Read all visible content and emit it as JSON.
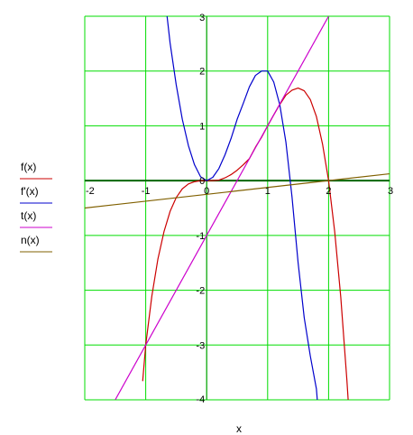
{
  "chart_data": {
    "type": "line",
    "xlabel": "x",
    "xlim": [
      -2,
      3
    ],
    "ylim": [
      -4,
      3
    ],
    "x_ticks": [
      "-2",
      "-1",
      "0",
      "1",
      "2",
      "3"
    ],
    "y_ticks": [
      "3",
      "2",
      "1",
      "0",
      "-1",
      "-2",
      "-3",
      "-4"
    ],
    "grid": true,
    "legend_position": "left",
    "series": [
      {
        "name": "f(x)",
        "color": "#cc0000",
        "x": [
          -1.05,
          -1,
          -0.9,
          -0.8,
          -0.7,
          -0.6,
          -0.5,
          -0.4,
          -0.3,
          -0.2,
          -0.1,
          0,
          0.1,
          0.2,
          0.3,
          0.4,
          0.5,
          0.6,
          0.7,
          0.8,
          0.9,
          1,
          1.1,
          1.2,
          1.3,
          1.4,
          1.5,
          1.6,
          1.7,
          1.8,
          1.9,
          2,
          2.1,
          2.2,
          2.3,
          2.35
        ],
        "y": [
          -3.66,
          -3,
          -2.11,
          -1.43,
          -0.93,
          -0.56,
          -0.31,
          -0.15,
          -0.06,
          -0.02,
          0,
          0,
          0,
          0.01,
          0.05,
          0.11,
          0.19,
          0.29,
          0.4,
          0.61,
          0.79,
          1,
          1.2,
          1.39,
          1.56,
          1.65,
          1.69,
          1.64,
          1.48,
          1.17,
          0.67,
          0,
          -0.93,
          -2.13,
          -3.64,
          -4.5
        ]
      },
      {
        "name": "f'(x)",
        "color": "#0000cc",
        "x": [
          -0.66,
          -0.6,
          -0.5,
          -0.4,
          -0.3,
          -0.2,
          -0.1,
          0,
          0.1,
          0.2,
          0.3,
          0.4,
          0.5,
          0.6,
          0.7,
          0.8,
          0.9,
          1,
          1.1,
          1.2,
          1.3,
          1.4,
          1.5,
          1.6,
          1.7,
          1.8,
          1.85
        ],
        "y": [
          3.1,
          2.51,
          1.75,
          1.12,
          0.64,
          0.29,
          0.07,
          0,
          0.06,
          0.22,
          0.47,
          0.77,
          1.12,
          1.41,
          1.71,
          1.92,
          2,
          2,
          1.8,
          1.38,
          0.7,
          -0.3,
          -1.5,
          -2.5,
          -3.2,
          -3.8,
          -4.5
        ]
      },
      {
        "name": "t(x)",
        "color": "#cc00cc",
        "x": [
          -1.5,
          2
        ],
        "y": [
          -4,
          3
        ]
      },
      {
        "name": "n(x)",
        "color": "#806000",
        "x": [
          -2,
          3
        ],
        "y": [
          -0.5,
          0.125
        ]
      }
    ]
  }
}
